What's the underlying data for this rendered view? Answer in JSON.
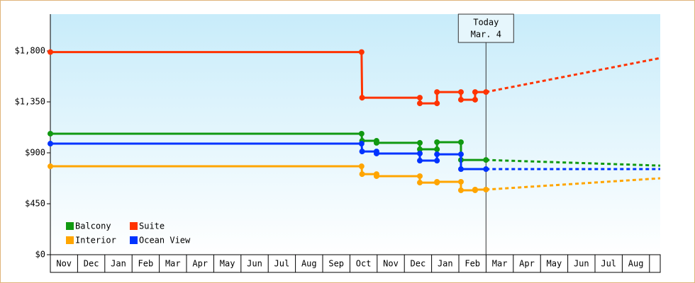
{
  "chart_data": {
    "type": "line",
    "categories": [
      "Nov",
      "Dec",
      "Jan",
      "Feb",
      "Mar",
      "Apr",
      "May",
      "Jun",
      "Jul",
      "Aug",
      "Sep",
      "Oct",
      "Nov",
      "Dec",
      "Jan",
      "Feb",
      "Mar",
      "Apr",
      "May",
      "Jun",
      "Jul",
      "Aug"
    ],
    "xlim": [
      0,
      22.4
    ],
    "ylim": [
      0,
      2125
    ],
    "yticks": [
      {
        "value": 0,
        "label": "$0"
      },
      {
        "value": 450,
        "label": "$450"
      },
      {
        "value": 900,
        "label": "$900"
      },
      {
        "value": 1350,
        "label": "$1,350"
      },
      {
        "value": 1800,
        "label": "$1,800"
      }
    ],
    "today_x": 16,
    "today_label": [
      "Today",
      "Mar. 4"
    ],
    "legend": "bottom-left",
    "series": [
      {
        "name": "Balcony",
        "color": "#119911",
        "x": [
          0,
          11.43,
          11.45,
          11.98,
          11.98,
          13.57,
          13.57,
          14.2,
          14.2,
          15.08,
          15.08,
          16
        ],
        "values": [
          1069,
          1069,
          1006,
          1006,
          988,
          988,
          931,
          931,
          994,
          994,
          837,
          837
        ],
        "forecast_x": [
          16,
          22.4
        ],
        "forecast_values": [
          837,
          787
        ]
      },
      {
        "name": "Suite",
        "color": "#ff3300",
        "x": [
          0,
          11.43,
          11.45,
          13.57,
          13.57,
          14.2,
          14.2,
          15.08,
          15.08,
          15.6,
          15.6,
          16
        ],
        "values": [
          1790,
          1790,
          1387,
          1387,
          1337,
          1337,
          1437,
          1437,
          1369,
          1369,
          1437,
          1437
        ],
        "forecast_x": [
          16,
          22.4
        ],
        "forecast_values": [
          1437,
          1737
        ]
      },
      {
        "name": "Interior",
        "color": "#ffa500",
        "x": [
          0,
          11.43,
          11.45,
          11.98,
          11.98,
          13.57,
          13.57,
          14.2,
          14.2,
          15.08,
          15.08,
          15.6,
          15.6,
          16
        ],
        "values": [
          781,
          781,
          712,
          712,
          694,
          694,
          637,
          637,
          644,
          644,
          569,
          569,
          575,
          575
        ],
        "forecast_x": [
          16,
          22.4
        ],
        "forecast_values": [
          575,
          675
        ]
      },
      {
        "name": "Ocean View",
        "color": "#0033ff",
        "x": [
          0,
          11.43,
          11.45,
          11.98,
          11.98,
          13.57,
          13.57,
          14.2,
          14.2,
          15.08,
          15.08,
          16
        ],
        "values": [
          981,
          981,
          912,
          912,
          894,
          894,
          831,
          831,
          887,
          887,
          756,
          756
        ],
        "forecast_x": [
          16,
          22.4
        ],
        "forecast_values": [
          756,
          756
        ]
      }
    ]
  }
}
